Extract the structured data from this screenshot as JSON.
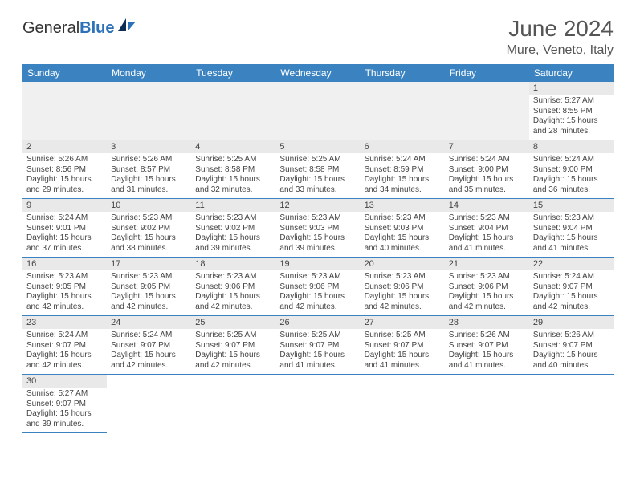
{
  "brand": {
    "part1": "General",
    "part2": "Blue",
    "color1": "#333333",
    "color2": "#2d71b8"
  },
  "title": "June 2024",
  "location": "Mure, Veneto, Italy",
  "headers": [
    "Sunday",
    "Monday",
    "Tuesday",
    "Wednesday",
    "Thursday",
    "Friday",
    "Saturday"
  ],
  "header_bg": "#3b83c0",
  "row_border": "#3b83c0",
  "daynum_bg": "#e9e9e9",
  "empty_bg": "#f0f0f0",
  "weeks": [
    [
      null,
      null,
      null,
      null,
      null,
      null,
      {
        "n": "1",
        "sunrise": "Sunrise: 5:27 AM",
        "sunset": "Sunset: 8:55 PM",
        "day": "Daylight: 15 hours and 28 minutes."
      }
    ],
    [
      {
        "n": "2",
        "sunrise": "Sunrise: 5:26 AM",
        "sunset": "Sunset: 8:56 PM",
        "day": "Daylight: 15 hours and 29 minutes."
      },
      {
        "n": "3",
        "sunrise": "Sunrise: 5:26 AM",
        "sunset": "Sunset: 8:57 PM",
        "day": "Daylight: 15 hours and 31 minutes."
      },
      {
        "n": "4",
        "sunrise": "Sunrise: 5:25 AM",
        "sunset": "Sunset: 8:58 PM",
        "day": "Daylight: 15 hours and 32 minutes."
      },
      {
        "n": "5",
        "sunrise": "Sunrise: 5:25 AM",
        "sunset": "Sunset: 8:58 PM",
        "day": "Daylight: 15 hours and 33 minutes."
      },
      {
        "n": "6",
        "sunrise": "Sunrise: 5:24 AM",
        "sunset": "Sunset: 8:59 PM",
        "day": "Daylight: 15 hours and 34 minutes."
      },
      {
        "n": "7",
        "sunrise": "Sunrise: 5:24 AM",
        "sunset": "Sunset: 9:00 PM",
        "day": "Daylight: 15 hours and 35 minutes."
      },
      {
        "n": "8",
        "sunrise": "Sunrise: 5:24 AM",
        "sunset": "Sunset: 9:00 PM",
        "day": "Daylight: 15 hours and 36 minutes."
      }
    ],
    [
      {
        "n": "9",
        "sunrise": "Sunrise: 5:24 AM",
        "sunset": "Sunset: 9:01 PM",
        "day": "Daylight: 15 hours and 37 minutes."
      },
      {
        "n": "10",
        "sunrise": "Sunrise: 5:23 AM",
        "sunset": "Sunset: 9:02 PM",
        "day": "Daylight: 15 hours and 38 minutes."
      },
      {
        "n": "11",
        "sunrise": "Sunrise: 5:23 AM",
        "sunset": "Sunset: 9:02 PM",
        "day": "Daylight: 15 hours and 39 minutes."
      },
      {
        "n": "12",
        "sunrise": "Sunrise: 5:23 AM",
        "sunset": "Sunset: 9:03 PM",
        "day": "Daylight: 15 hours and 39 minutes."
      },
      {
        "n": "13",
        "sunrise": "Sunrise: 5:23 AM",
        "sunset": "Sunset: 9:03 PM",
        "day": "Daylight: 15 hours and 40 minutes."
      },
      {
        "n": "14",
        "sunrise": "Sunrise: 5:23 AM",
        "sunset": "Sunset: 9:04 PM",
        "day": "Daylight: 15 hours and 41 minutes."
      },
      {
        "n": "15",
        "sunrise": "Sunrise: 5:23 AM",
        "sunset": "Sunset: 9:04 PM",
        "day": "Daylight: 15 hours and 41 minutes."
      }
    ],
    [
      {
        "n": "16",
        "sunrise": "Sunrise: 5:23 AM",
        "sunset": "Sunset: 9:05 PM",
        "day": "Daylight: 15 hours and 42 minutes."
      },
      {
        "n": "17",
        "sunrise": "Sunrise: 5:23 AM",
        "sunset": "Sunset: 9:05 PM",
        "day": "Daylight: 15 hours and 42 minutes."
      },
      {
        "n": "18",
        "sunrise": "Sunrise: 5:23 AM",
        "sunset": "Sunset: 9:06 PM",
        "day": "Daylight: 15 hours and 42 minutes."
      },
      {
        "n": "19",
        "sunrise": "Sunrise: 5:23 AM",
        "sunset": "Sunset: 9:06 PM",
        "day": "Daylight: 15 hours and 42 minutes."
      },
      {
        "n": "20",
        "sunrise": "Sunrise: 5:23 AM",
        "sunset": "Sunset: 9:06 PM",
        "day": "Daylight: 15 hours and 42 minutes."
      },
      {
        "n": "21",
        "sunrise": "Sunrise: 5:23 AM",
        "sunset": "Sunset: 9:06 PM",
        "day": "Daylight: 15 hours and 42 minutes."
      },
      {
        "n": "22",
        "sunrise": "Sunrise: 5:24 AM",
        "sunset": "Sunset: 9:07 PM",
        "day": "Daylight: 15 hours and 42 minutes."
      }
    ],
    [
      {
        "n": "23",
        "sunrise": "Sunrise: 5:24 AM",
        "sunset": "Sunset: 9:07 PM",
        "day": "Daylight: 15 hours and 42 minutes."
      },
      {
        "n": "24",
        "sunrise": "Sunrise: 5:24 AM",
        "sunset": "Sunset: 9:07 PM",
        "day": "Daylight: 15 hours and 42 minutes."
      },
      {
        "n": "25",
        "sunrise": "Sunrise: 5:25 AM",
        "sunset": "Sunset: 9:07 PM",
        "day": "Daylight: 15 hours and 42 minutes."
      },
      {
        "n": "26",
        "sunrise": "Sunrise: 5:25 AM",
        "sunset": "Sunset: 9:07 PM",
        "day": "Daylight: 15 hours and 41 minutes."
      },
      {
        "n": "27",
        "sunrise": "Sunrise: 5:25 AM",
        "sunset": "Sunset: 9:07 PM",
        "day": "Daylight: 15 hours and 41 minutes."
      },
      {
        "n": "28",
        "sunrise": "Sunrise: 5:26 AM",
        "sunset": "Sunset: 9:07 PM",
        "day": "Daylight: 15 hours and 41 minutes."
      },
      {
        "n": "29",
        "sunrise": "Sunrise: 5:26 AM",
        "sunset": "Sunset: 9:07 PM",
        "day": "Daylight: 15 hours and 40 minutes."
      }
    ],
    [
      {
        "n": "30",
        "sunrise": "Sunrise: 5:27 AM",
        "sunset": "Sunset: 9:07 PM",
        "day": "Daylight: 15 hours and 39 minutes."
      },
      null,
      null,
      null,
      null,
      null,
      null
    ]
  ]
}
